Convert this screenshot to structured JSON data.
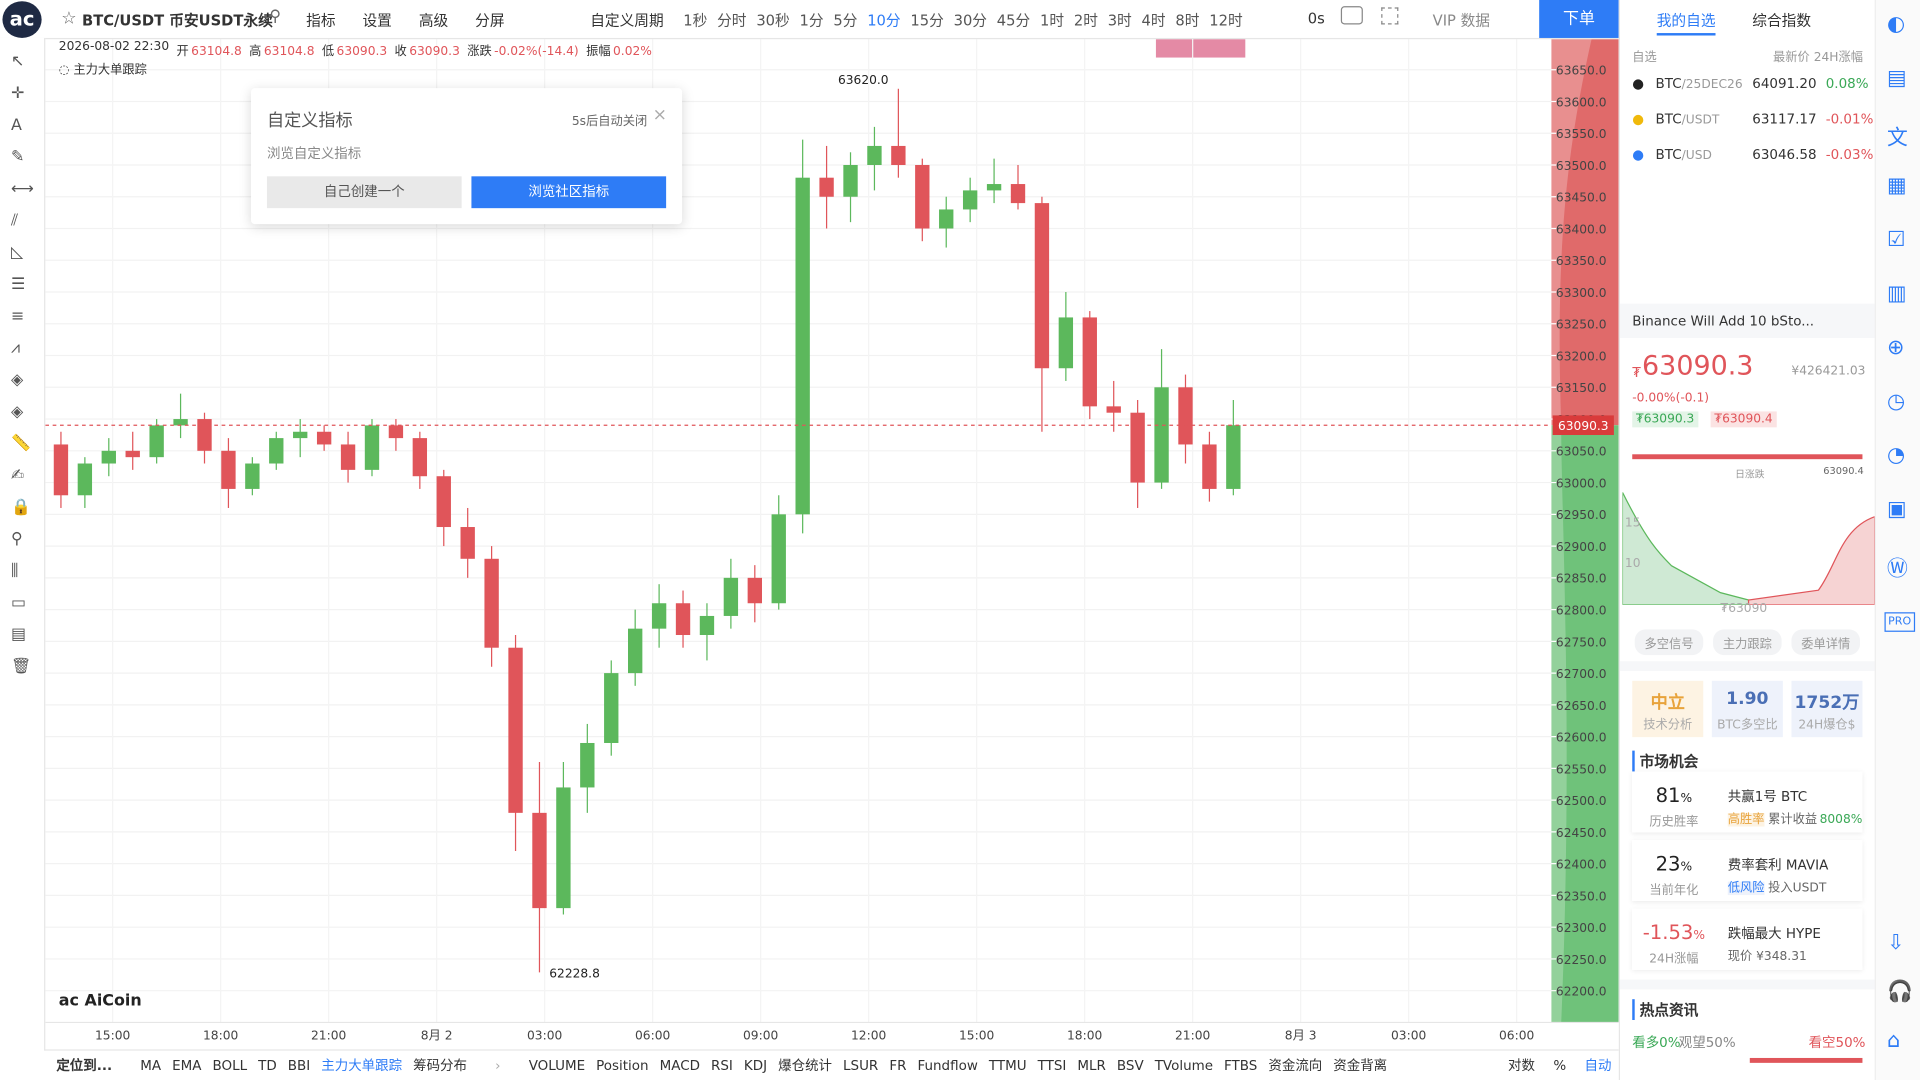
{
  "header": {
    "symbol": "BTC/USDT 币安USDT永续",
    "menu": [
      "指标",
      "设置",
      "高级",
      "分屏"
    ],
    "custom_period": "自定义周期",
    "periods": [
      "1秒",
      "分时",
      "30秒",
      "1分",
      "5分",
      "10分",
      "15分",
      "30分",
      "45分",
      "1时",
      "2时",
      "3时",
      "4时",
      "8时",
      "12时"
    ],
    "active_period": 5,
    "countdown": "0s",
    "vip": "VIP 数据",
    "order": "下单"
  },
  "ohlc_bar": {
    "datetime": "2026-08-02 22:30",
    "items": [
      {
        "label": "开",
        "value": "63104.8"
      },
      {
        "label": "高",
        "value": "63104.8"
      },
      {
        "label": "低",
        "value": "63090.3"
      },
      {
        "label": "收",
        "value": "63090.3"
      },
      {
        "label": "涨跌",
        "value": "-0.02%(-14.4)"
      },
      {
        "label": "振幅",
        "value": "0.02%"
      }
    ],
    "indicator": "主力大单跟踪"
  },
  "popup": {
    "title": "自定义指标",
    "auto_close": "5s后自动关闭",
    "subtitle": "浏览自定义指标",
    "buttons": [
      "自己创建一个",
      "浏览社区指标"
    ]
  },
  "chart_data": {
    "type": "candlestick",
    "ohlc": [
      [
        63060,
        63080,
        62960,
        62980
      ],
      [
        62980,
        63040,
        62960,
        63030
      ],
      [
        63030,
        63070,
        63010,
        63050
      ],
      [
        63050,
        63080,
        63020,
        63040
      ],
      [
        63040,
        63100,
        63030,
        63090
      ],
      [
        63090,
        63140,
        63070,
        63100
      ],
      [
        63100,
        63110,
        63030,
        63050
      ],
      [
        63050,
        63070,
        62960,
        62990
      ],
      [
        62990,
        63040,
        62980,
        63030
      ],
      [
        63030,
        63080,
        63020,
        63070
      ],
      [
        63070,
        63100,
        63040,
        63080
      ],
      [
        63080,
        63090,
        63050,
        63060
      ],
      [
        63060,
        63080,
        63000,
        63020
      ],
      [
        63020,
        63100,
        63010,
        63090
      ],
      [
        63090,
        63100,
        63050,
        63070
      ],
      [
        63070,
        63080,
        62990,
        63010
      ],
      [
        63010,
        63020,
        62900,
        62930
      ],
      [
        62930,
        62960,
        62850,
        62880
      ],
      [
        62880,
        62900,
        62710,
        62740
      ],
      [
        62740,
        62760,
        62420,
        62480
      ],
      [
        62480,
        62560,
        62228.8,
        62330
      ],
      [
        62330,
        62560,
        62320,
        62520
      ],
      [
        62520,
        62620,
        62480,
        62590
      ],
      [
        62590,
        62720,
        62570,
        62700
      ],
      [
        62700,
        62800,
        62680,
        62770
      ],
      [
        62770,
        62840,
        62740,
        62810
      ],
      [
        62810,
        62830,
        62740,
        62760
      ],
      [
        62760,
        62810,
        62720,
        62790
      ],
      [
        62790,
        62880,
        62770,
        62850
      ],
      [
        62850,
        62870,
        62780,
        62810
      ],
      [
        62810,
        62980,
        62800,
        62950
      ],
      [
        62950,
        63540,
        62920,
        63480
      ],
      [
        63480,
        63530,
        63400,
        63450
      ],
      [
        63450,
        63520,
        63410,
        63500
      ],
      [
        63500,
        63560,
        63460,
        63530
      ],
      [
        63530,
        63620,
        63480,
        63500
      ],
      [
        63500,
        63510,
        63380,
        63400
      ],
      [
        63400,
        63450,
        63370,
        63430
      ],
      [
        63430,
        63480,
        63410,
        63460
      ],
      [
        63460,
        63510,
        63440,
        63470
      ],
      [
        63470,
        63500,
        63430,
        63440
      ],
      [
        63440,
        63450,
        63080,
        63180
      ],
      [
        63180,
        63300,
        63160,
        63260
      ],
      [
        63260,
        63270,
        63100,
        63120
      ],
      [
        63120,
        63160,
        63080,
        63110
      ],
      [
        63110,
        63130,
        62960,
        63000
      ],
      [
        63000,
        63210,
        62990,
        63150
      ],
      [
        63150,
        63170,
        63030,
        63060
      ],
      [
        63060,
        63080,
        62970,
        62990
      ],
      [
        62990,
        63130,
        62980,
        63090.3
      ]
    ],
    "up_color": "#5cb85c",
    "down_color": "#e0555a",
    "grid": true,
    "ylim": [
      62150,
      63700
    ],
    "yticks": [
      {
        "value": 62200,
        "label": "62200.0"
      },
      {
        "value": 62250,
        "label": "62250.0"
      },
      {
        "value": 62300,
        "label": "62300.0"
      },
      {
        "value": 62350,
        "label": "62350.0"
      },
      {
        "value": 62400,
        "label": "62400.0"
      },
      {
        "value": 62450,
        "label": "62450.0"
      },
      {
        "value": 62500,
        "label": "62500.0"
      },
      {
        "value": 62550,
        "label": "62550.0"
      },
      {
        "value": 62600,
        "label": "62600.0"
      },
      {
        "value": 62650,
        "label": "62650.0"
      },
      {
        "value": 62700,
        "label": "62700.0"
      },
      {
        "value": 62750,
        "label": "62750.0"
      },
      {
        "value": 62800,
        "label": "62800.0"
      },
      {
        "value": 62850,
        "label": "62850.0"
      },
      {
        "value": 62900,
        "label": "62900.0"
      },
      {
        "value": 62950,
        "label": "62950.0"
      },
      {
        "value": 63000,
        "label": "63000.0"
      },
      {
        "value": 63050,
        "label": "63050.0"
      },
      {
        "value": 63100,
        "label": "63100.0"
      },
      {
        "value": 63150,
        "label": "63150.0"
      },
      {
        "value": 63200,
        "label": "63200.0"
      },
      {
        "value": 63250,
        "label": "63250.0"
      },
      {
        "value": 63300,
        "label": "63300.0"
      },
      {
        "value": 63350,
        "label": "63350.0"
      },
      {
        "value": 63400,
        "label": "63400.0"
      },
      {
        "value": 63450,
        "label": "63450.0"
      },
      {
        "value": 63500,
        "label": "63500.0"
      },
      {
        "value": 63550,
        "label": "63550.0"
      },
      {
        "value": 63600,
        "label": "63600.0"
      },
      {
        "value": 63650,
        "label": "63650.0"
      }
    ],
    "x_labels": [
      "15:00",
      "18:00",
      "21:00",
      "8月 2",
      "03:00",
      "06:00",
      "09:00",
      "12:00",
      "15:00",
      "18:00",
      "21:00",
      "8月 3",
      "03:00",
      "06:00"
    ],
    "high_label": {
      "value": 63620,
      "label": "63620.0"
    },
    "low_label": {
      "value": 62228.8,
      "label": "62228.8"
    },
    "last_price": {
      "value": 63090.3,
      "label": "63090.3"
    },
    "watermark": "AiCoin"
  },
  "bottom_bar": {
    "locate": "定位到...",
    "indicators": [
      "MA",
      "EMA",
      "BOLL",
      "TD",
      "BBI",
      "主力大单跟踪",
      "筹码分布"
    ],
    "active_indicator": 5,
    "indicators2": [
      "VOLUME",
      "Position",
      "MACD",
      "RSI",
      "KDJ",
      "爆仓统计",
      "LSUR",
      "FR",
      "Fundflow",
      "TTMU",
      "TTSI",
      "MLR",
      "BSV",
      "TVolume",
      "FTBS",
      "资金流向",
      "资金背离"
    ],
    "right": [
      "对数",
      "%",
      "自动"
    ]
  },
  "side": {
    "tabs": [
      "我的自选",
      "综合指数"
    ],
    "list_label": "自选",
    "list_head": "最新价 24H涨幅",
    "watchlist": [
      {
        "base": "BTC",
        "quote": "/25DEC26",
        "price": "64091.20",
        "change": "0.08%"
      },
      {
        "base": "BTC",
        "quote": "/USDT",
        "price": "63117.17",
        "change": "-0.01%"
      },
      {
        "base": "BTC",
        "quote": "/USD",
        "price": "63046.58",
        "change": "-0.03%"
      }
    ],
    "news": "Binance Will Add 10 bSto...",
    "price": "63090.3",
    "currency": "₮",
    "cny": "¥426421.03",
    "change": "-0.00%(-0.1)",
    "bid": "₮63090.3",
    "ask": "₮63090.4",
    "day_range": "日涨跌",
    "day_high": "63090.4",
    "depth_labels": [
      "15",
      "10"
    ],
    "depth_mid": "₮63090",
    "sub_tabs": [
      "多空信号",
      "主力跟踪",
      "委单详情"
    ],
    "cards": [
      {
        "value": "中立",
        "label": "技术分析"
      },
      {
        "value": "1.90",
        "label": "BTC多空比"
      },
      {
        "value": "1752万",
        "label": "24H爆仓$"
      }
    ],
    "market_title": "市场机会",
    "opportunities": [
      {
        "pct": "81",
        "unit": "%",
        "sub": "历史胜率",
        "title": "共赢1号 BTC",
        "tag": "高胜率",
        "desc": "累计收益",
        "extra": "8008%"
      },
      {
        "pct": "23",
        "unit": "%",
        "sub": "当前年化",
        "title": "费率套利 MAVIA",
        "tag": "低风险",
        "desc": "投入USDT"
      },
      {
        "pct": "-1.53",
        "unit": "%",
        "sub": "24H涨幅",
        "title": "跌幅最大 HYPE",
        "desc": "现价 ¥348.31"
      }
    ],
    "hot_title": "热点资讯",
    "sentiment": [
      "看多0%",
      "观望50%",
      "看空50%"
    ]
  },
  "rail": {
    "pro": "PRO"
  }
}
